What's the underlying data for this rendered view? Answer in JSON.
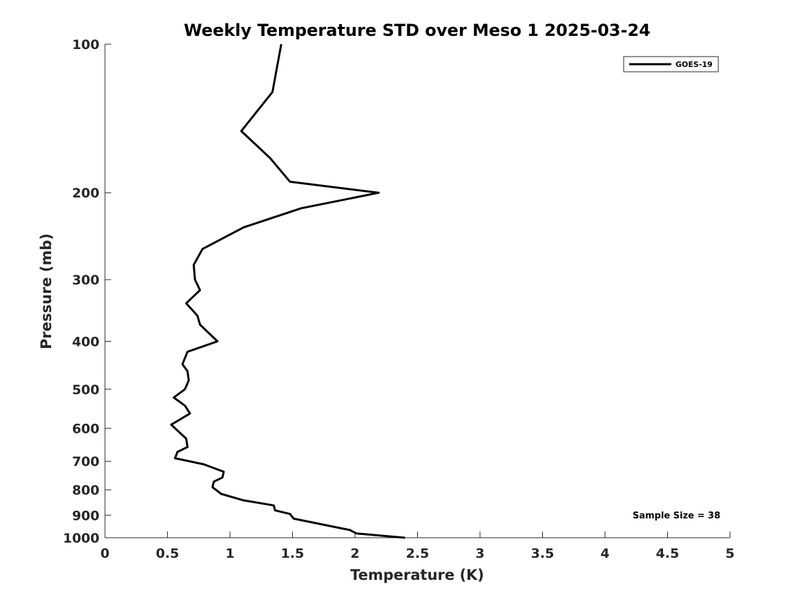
{
  "chart_data": {
    "type": "line",
    "title": "Weekly Temperature STD over Meso 1 2025-03-24",
    "xlabel": "Temperature (K)",
    "ylabel": "Pressure (mb)",
    "xlim": [
      0,
      5
    ],
    "ylim": [
      100,
      1000
    ],
    "yscale": "log",
    "y_reversed": true,
    "x_ticks": [
      "0",
      "0.5",
      "1",
      "1.5",
      "2",
      "2.5",
      "3",
      "3.5",
      "4",
      "4.5",
      "5"
    ],
    "y_ticks": [
      "100",
      "200",
      "300",
      "400",
      "500",
      "600",
      "700",
      "800",
      "900",
      "1000"
    ],
    "grid": false,
    "legend": {
      "position": "top-right",
      "entries": [
        "GOES-19"
      ]
    },
    "annotation": "Sample Size = 38",
    "series": [
      {
        "name": "GOES-19",
        "color": "#000000",
        "points": [
          [
            1.41,
            100
          ],
          [
            1.34,
            125
          ],
          [
            1.09,
            150
          ],
          [
            1.32,
            170
          ],
          [
            1.48,
            190
          ],
          [
            2.19,
            200
          ],
          [
            1.57,
            215
          ],
          [
            1.11,
            235
          ],
          [
            0.78,
            260
          ],
          [
            0.71,
            280
          ],
          [
            0.72,
            300
          ],
          [
            0.76,
            315
          ],
          [
            0.65,
            335
          ],
          [
            0.74,
            355
          ],
          [
            0.76,
            370
          ],
          [
            0.9,
            400
          ],
          [
            0.66,
            420
          ],
          [
            0.62,
            445
          ],
          [
            0.66,
            460
          ],
          [
            0.67,
            480
          ],
          [
            0.64,
            500
          ],
          [
            0.55,
            520
          ],
          [
            0.64,
            540
          ],
          [
            0.68,
            560
          ],
          [
            0.53,
            590
          ],
          [
            0.65,
            630
          ],
          [
            0.66,
            655
          ],
          [
            0.58,
            670
          ],
          [
            0.56,
            690
          ],
          [
            0.79,
            710
          ],
          [
            0.95,
            735
          ],
          [
            0.94,
            755
          ],
          [
            0.87,
            770
          ],
          [
            0.86,
            790
          ],
          [
            0.93,
            815
          ],
          [
            1.11,
            840
          ],
          [
            1.35,
            860
          ],
          [
            1.36,
            880
          ],
          [
            1.48,
            895
          ],
          [
            1.51,
            915
          ],
          [
            1.96,
            965
          ],
          [
            2.01,
            980
          ],
          [
            2.4,
            1000
          ]
        ]
      }
    ]
  }
}
